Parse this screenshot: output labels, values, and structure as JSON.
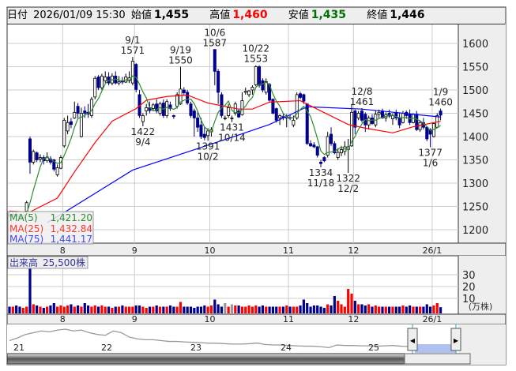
{
  "header": {
    "date_label": "日付",
    "datetime": "2026/01/09 15:30",
    "open_label": "始値",
    "open": "1,455",
    "high_label": "高値",
    "high": "1,460",
    "low_label": "安値",
    "low": "1,435",
    "close_label": "終値",
    "close": "1,446"
  },
  "colors": {
    "up_fill": "#ffffff",
    "down_fill": "#00008b",
    "ma5": "#2e8b2e",
    "ma25": "#ff0000",
    "ma75": "#0000ff",
    "vol_up": "#ff0000",
    "vol_down": "#00008b",
    "vol_flat": "#999999",
    "high_text": "#ff0000",
    "low_text": "#007000"
  },
  "legend": {
    "ma5_label": "MA(5)",
    "ma5_value": "1,421.20",
    "ma25_label": "MA(25)",
    "ma25_value": "1,432.84",
    "ma75_label": "MA(75)",
    "ma75_value": "1,441.17"
  },
  "volume_legend": {
    "label": "出来高",
    "value": "25,500株"
  },
  "volume_unit": "(万株)",
  "chart_data": [
    {
      "type": "candlestick",
      "ylim": [
        1160,
        1640
      ],
      "y_ticks": [
        "1200",
        "1250",
        "1300",
        "1350",
        "1400",
        "1450",
        "1500",
        "1550",
        "1600"
      ],
      "grid": true,
      "month_ticks": [
        {
          "label": "8",
          "i": 16
        },
        {
          "label": "9",
          "i": 37
        },
        {
          "label": "10",
          "i": 59
        },
        {
          "label": "11",
          "i": 82
        },
        {
          "label": "12",
          "i": 101
        },
        {
          "label": "26/1",
          "i": 124
        }
      ],
      "ohlc": [
        [
          1232,
          1238,
          1226,
          1230
        ],
        [
          1230,
          1236,
          1224,
          1233
        ],
        [
          1233,
          1240,
          1228,
          1229
        ],
        [
          1229,
          1234,
          1222,
          1226
        ],
        [
          1226,
          1232,
          1220,
          1230
        ],
        [
          1240,
          1262,
          1238,
          1258
        ],
        [
          1395,
          1400,
          1320,
          1345
        ],
        [
          1345,
          1372,
          1340,
          1368
        ],
        [
          1365,
          1368,
          1345,
          1350
        ],
        [
          1352,
          1362,
          1345,
          1355
        ],
        [
          1355,
          1360,
          1340,
          1348
        ],
        [
          1348,
          1366,
          1344,
          1356
        ],
        [
          1352,
          1358,
          1340,
          1345
        ],
        [
          1350,
          1352,
          1325,
          1330
        ],
        [
          1318,
          1340,
          1314,
          1333
        ],
        [
          1332,
          1360,
          1330,
          1355
        ],
        [
          1380,
          1440,
          1376,
          1435
        ],
        [
          1412,
          1445,
          1405,
          1430
        ],
        [
          1432,
          1440,
          1418,
          1426
        ],
        [
          1440,
          1475,
          1438,
          1452
        ],
        [
          1465,
          1472,
          1440,
          1450
        ],
        [
          1400,
          1462,
          1398,
          1450
        ],
        [
          1455,
          1465,
          1440,
          1450
        ],
        [
          1452,
          1470,
          1440,
          1448
        ],
        [
          1445,
          1485,
          1440,
          1480
        ],
        [
          1485,
          1530,
          1480,
          1525
        ],
        [
          1528,
          1532,
          1500,
          1505
        ],
        [
          1505,
          1535,
          1500,
          1530
        ],
        [
          1520,
          1540,
          1515,
          1528
        ],
        [
          1528,
          1538,
          1510,
          1515
        ],
        [
          1515,
          1536,
          1510,
          1530
        ],
        [
          1530,
          1540,
          1512,
          1515
        ],
        [
          1515,
          1530,
          1510,
          1518
        ],
        [
          1520,
          1528,
          1512,
          1517
        ],
        [
          1517,
          1535,
          1515,
          1528
        ],
        [
          1520,
          1540,
          1515,
          1526
        ],
        [
          1515,
          1571,
          1510,
          1562
        ],
        [
          1555,
          1558,
          1495,
          1501
        ],
        [
          1490,
          1500,
          1440,
          1445
        ],
        [
          1432,
          1450,
          1422,
          1445
        ],
        [
          1455,
          1470,
          1445,
          1462
        ],
        [
          1462,
          1475,
          1450,
          1456
        ],
        [
          1460,
          1472,
          1455,
          1468
        ],
        [
          1470,
          1480,
          1450,
          1455
        ],
        [
          1450,
          1475,
          1445,
          1470
        ],
        [
          1472,
          1480,
          1440,
          1445
        ],
        [
          1445,
          1480,
          1440,
          1475
        ],
        [
          1468,
          1475,
          1455,
          1460
        ],
        [
          1445,
          1447,
          1438,
          1443
        ],
        [
          1465,
          1495,
          1460,
          1490
        ],
        [
          1470,
          1550,
          1468,
          1502
        ],
        [
          1500,
          1506,
          1488,
          1494
        ],
        [
          1495,
          1500,
          1468,
          1472
        ],
        [
          1470,
          1475,
          1440,
          1445
        ],
        [
          1455,
          1460,
          1400,
          1440
        ],
        [
          1440,
          1455,
          1410,
          1420
        ],
        [
          1425,
          1440,
          1395,
          1400
        ],
        [
          1405,
          1420,
          1392,
          1398
        ],
        [
          1402,
          1418,
          1391,
          1412
        ],
        [
          1410,
          1420,
          1400,
          1415
        ],
        [
          1587,
          1587,
          1510,
          1540
        ],
        [
          1540,
          1545,
          1470,
          1495
        ],
        [
          1490,
          1495,
          1440,
          1445
        ],
        [
          1440,
          1445,
          1435,
          1440
        ],
        [
          1445,
          1470,
          1440,
          1462
        ],
        [
          1440,
          1445,
          1431,
          1440
        ],
        [
          1450,
          1475,
          1445,
          1470
        ],
        [
          1455,
          1460,
          1440,
          1442
        ],
        [
          1447,
          1495,
          1445,
          1477
        ],
        [
          1495,
          1505,
          1490,
          1497
        ],
        [
          1490,
          1500,
          1485,
          1498
        ],
        [
          1500,
          1510,
          1490,
          1506
        ],
        [
          1511,
          1553,
          1508,
          1550
        ],
        [
          1550,
          1553,
          1505,
          1510
        ],
        [
          1520,
          1525,
          1495,
          1500
        ],
        [
          1495,
          1525,
          1490,
          1518
        ],
        [
          1512,
          1515,
          1475,
          1478
        ],
        [
          1480,
          1482,
          1448,
          1450
        ],
        [
          1460,
          1462,
          1430,
          1435
        ],
        [
          1440,
          1448,
          1425,
          1445
        ],
        [
          1443,
          1450,
          1435,
          1441
        ],
        [
          1440,
          1448,
          1420,
          1442
        ],
        [
          1441,
          1447,
          1435,
          1440
        ],
        [
          1425,
          1445,
          1420,
          1435
        ],
        [
          1440,
          1495,
          1436,
          1490
        ],
        [
          1492,
          1496,
          1480,
          1484
        ],
        [
          1490,
          1492,
          1470,
          1476
        ],
        [
          1470,
          1472,
          1382,
          1385
        ],
        [
          1385,
          1392,
          1378,
          1380
        ],
        [
          1382,
          1388,
          1375,
          1378
        ],
        [
          1378,
          1380,
          1355,
          1360
        ],
        [
          1345,
          1350,
          1334,
          1342
        ],
        [
          1355,
          1358,
          1345,
          1348
        ],
        [
          1360,
          1410,
          1355,
          1400
        ],
        [
          1405,
          1420,
          1380,
          1385
        ],
        [
          1385,
          1390,
          1362,
          1365
        ],
        [
          1355,
          1375,
          1350,
          1366
        ],
        [
          1365,
          1380,
          1358,
          1372
        ],
        [
          1368,
          1390,
          1360,
          1378
        ],
        [
          1372,
          1395,
          1322,
          1378
        ],
        [
          1380,
          1470,
          1378,
          1452
        ],
        [
          1455,
          1458,
          1405,
          1420
        ],
        [
          1440,
          1455,
          1435,
          1450
        ],
        [
          1455,
          1461,
          1430,
          1435
        ],
        [
          1448,
          1452,
          1410,
          1425
        ],
        [
          1425,
          1445,
          1415,
          1440
        ],
        [
          1440,
          1448,
          1425,
          1428
        ],
        [
          1425,
          1455,
          1420,
          1448
        ],
        [
          1448,
          1458,
          1440,
          1452
        ],
        [
          1455,
          1460,
          1438,
          1440
        ],
        [
          1440,
          1452,
          1432,
          1447
        ],
        [
          1450,
          1458,
          1440,
          1444
        ],
        [
          1438,
          1450,
          1425,
          1445
        ],
        [
          1452,
          1458,
          1435,
          1440
        ],
        [
          1440,
          1450,
          1418,
          1425
        ],
        [
          1430,
          1455,
          1428,
          1450
        ],
        [
          1452,
          1456,
          1438,
          1445
        ],
        [
          1448,
          1458,
          1425,
          1430
        ],
        [
          1430,
          1450,
          1428,
          1448
        ],
        [
          1448,
          1455,
          1412,
          1415
        ],
        [
          1415,
          1435,
          1410,
          1430
        ],
        [
          1430,
          1440,
          1415,
          1420
        ],
        [
          1420,
          1422,
          1390,
          1395
        ],
        [
          1415,
          1418,
          1377,
          1405
        ],
        [
          1400,
          1430,
          1398,
          1428
        ],
        [
          1420,
          1450,
          1418,
          1445
        ],
        [
          1455,
          1460,
          1435,
          1446
        ]
      ],
      "ma25": [
        [
          0,
          1240
        ],
        [
          6,
          1238
        ],
        [
          14,
          1268
        ],
        [
          19,
          1324
        ],
        [
          25,
          1387
        ],
        [
          30,
          1433
        ],
        [
          37,
          1460
        ],
        [
          40,
          1478
        ],
        [
          46,
          1486
        ],
        [
          52,
          1489
        ],
        [
          58,
          1472
        ],
        [
          67,
          1459
        ],
        [
          71,
          1459
        ],
        [
          76,
          1474
        ],
        [
          85,
          1477
        ],
        [
          91,
          1455
        ],
        [
          99,
          1426
        ],
        [
          104,
          1418
        ],
        [
          112,
          1408
        ],
        [
          118,
          1421
        ],
        [
          126,
          1433
        ]
      ],
      "ma75": [
        [
          11,
          1215
        ],
        [
          16,
          1237
        ],
        [
          36,
          1328
        ],
        [
          66,
          1401
        ],
        [
          76,
          1426
        ],
        [
          87,
          1464
        ],
        [
          103,
          1459
        ],
        [
          126,
          1442
        ]
      ],
      "annotations": [
        {
          "i": 36,
          "pos": "above",
          "date": "9/1",
          "price": "1571",
          "value": 1571
        },
        {
          "i": 39,
          "pos": "below",
          "date": "9/4",
          "price": "1422",
          "value": 1422
        },
        {
          "i": 50,
          "pos": "above",
          "date": "9/19",
          "price": "1550",
          "value": 1550
        },
        {
          "i": 58,
          "pos": "below",
          "date": "10/2",
          "price": "1391",
          "value": 1391
        },
        {
          "i": 60,
          "pos": "above",
          "date": "10/6",
          "price": "1587",
          "value": 1587
        },
        {
          "i": 65,
          "pos": "below",
          "date": "10/14",
          "price": "1431",
          "value": 1431
        },
        {
          "i": 72,
          "pos": "above",
          "date": "10/22",
          "price": "1553",
          "value": 1553
        },
        {
          "i": 91,
          "pos": "below",
          "date": "11/18",
          "price": "1334",
          "value": 1334
        },
        {
          "i": 99,
          "pos": "below",
          "date": "12/2",
          "price": "1322",
          "value": 1322
        },
        {
          "i": 103,
          "pos": "above",
          "date": "12/8",
          "price": "1461",
          "value": 1461
        },
        {
          "i": 123,
          "pos": "below",
          "date": "1/6",
          "price": "1377",
          "value": 1377
        },
        {
          "i": 126,
          "pos": "above",
          "date": "1/9",
          "price": "1460",
          "value": 1460
        }
      ]
    },
    {
      "type": "bar",
      "title": "出来高",
      "unit": "万株",
      "ylim": [
        0,
        40
      ],
      "y_ticks": [
        "10",
        "20",
        "30"
      ],
      "values": [
        3,
        3,
        4,
        3,
        2,
        3,
        35,
        5,
        4,
        3,
        2,
        3,
        4,
        6,
        3,
        4,
        3,
        4,
        5,
        3,
        4,
        3,
        6,
        4,
        3,
        4,
        3,
        4,
        3,
        3,
        2,
        3,
        3,
        4,
        3,
        3,
        3,
        4,
        4,
        3,
        2,
        3,
        3,
        4,
        3,
        3,
        3,
        4,
        3,
        3,
        7,
        3,
        3,
        3,
        2,
        3,
        3,
        4,
        3,
        4,
        9,
        5,
        3,
        6,
        3,
        5,
        4,
        4,
        3,
        3,
        4,
        3,
        4,
        3,
        4,
        3,
        3,
        3,
        3,
        3,
        3,
        4,
        3,
        3,
        3,
        4,
        9,
        6,
        3,
        4,
        4,
        3,
        2,
        5,
        4,
        12,
        8,
        5,
        3,
        18,
        14,
        8,
        5,
        5,
        4,
        5,
        3,
        4,
        3,
        3,
        3,
        3,
        3,
        3,
        3,
        4,
        3,
        4,
        3,
        3,
        3,
        3,
        5,
        3,
        4,
        6,
        2.55
      ]
    }
  ],
  "navigator": {
    "year_labels": [
      "21",
      "22",
      "23",
      "24",
      "25"
    ],
    "history": [
      1700,
      1850,
      2050,
      2150,
      2250,
      2200,
      2300,
      2350,
      2250,
      2300,
      2150,
      2050,
      2000,
      2250,
      2150,
      1900,
      1800,
      1750,
      1750,
      1700,
      1650,
      1650,
      1620,
      1600,
      1580,
      1550,
      1550,
      1520,
      1500,
      1500,
      1520,
      1560,
      1480,
      1450,
      1450,
      1420,
      1400,
      1380,
      1380,
      1350,
      1300,
      1450,
      1420,
      1420,
      1400,
      1400,
      1380,
      1400,
      1420,
      1380,
      1360,
      1400,
      1400,
      1400,
      1420,
      1420,
      1450
    ]
  }
}
